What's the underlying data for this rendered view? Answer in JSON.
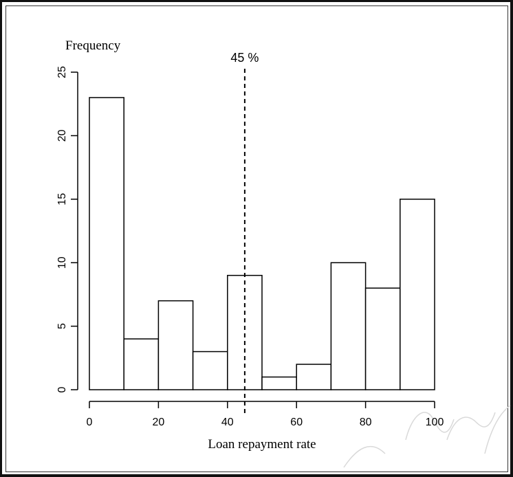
{
  "chart_data": {
    "type": "bar",
    "ylabel": "Frequency",
    "xlabel": "Loan repayment rate",
    "bins": [
      {
        "from": 0,
        "to": 10,
        "value": 23
      },
      {
        "from": 10,
        "to": 20,
        "value": 4
      },
      {
        "from": 20,
        "to": 30,
        "value": 7
      },
      {
        "from": 30,
        "to": 40,
        "value": 3
      },
      {
        "from": 40,
        "to": 50,
        "value": 9
      },
      {
        "from": 50,
        "to": 60,
        "value": 1
      },
      {
        "from": 60,
        "to": 70,
        "value": 2
      },
      {
        "from": 70,
        "to": 80,
        "value": 10
      },
      {
        "from": 80,
        "to": 90,
        "value": 8
      },
      {
        "from": 90,
        "to": 100,
        "value": 15
      }
    ],
    "xlim": [
      0,
      100
    ],
    "ylim": [
      0,
      25
    ],
    "x_ticks": [
      0,
      20,
      40,
      60,
      80,
      100
    ],
    "y_ticks": [
      0,
      5,
      10,
      15,
      20,
      25
    ],
    "reference_line": {
      "x": 45,
      "label": "45 %",
      "style": "dashed"
    },
    "grid": false,
    "colors": {
      "bar_fill": "#ffffff",
      "bar_stroke": "#000000",
      "axis": "#000000"
    }
  }
}
